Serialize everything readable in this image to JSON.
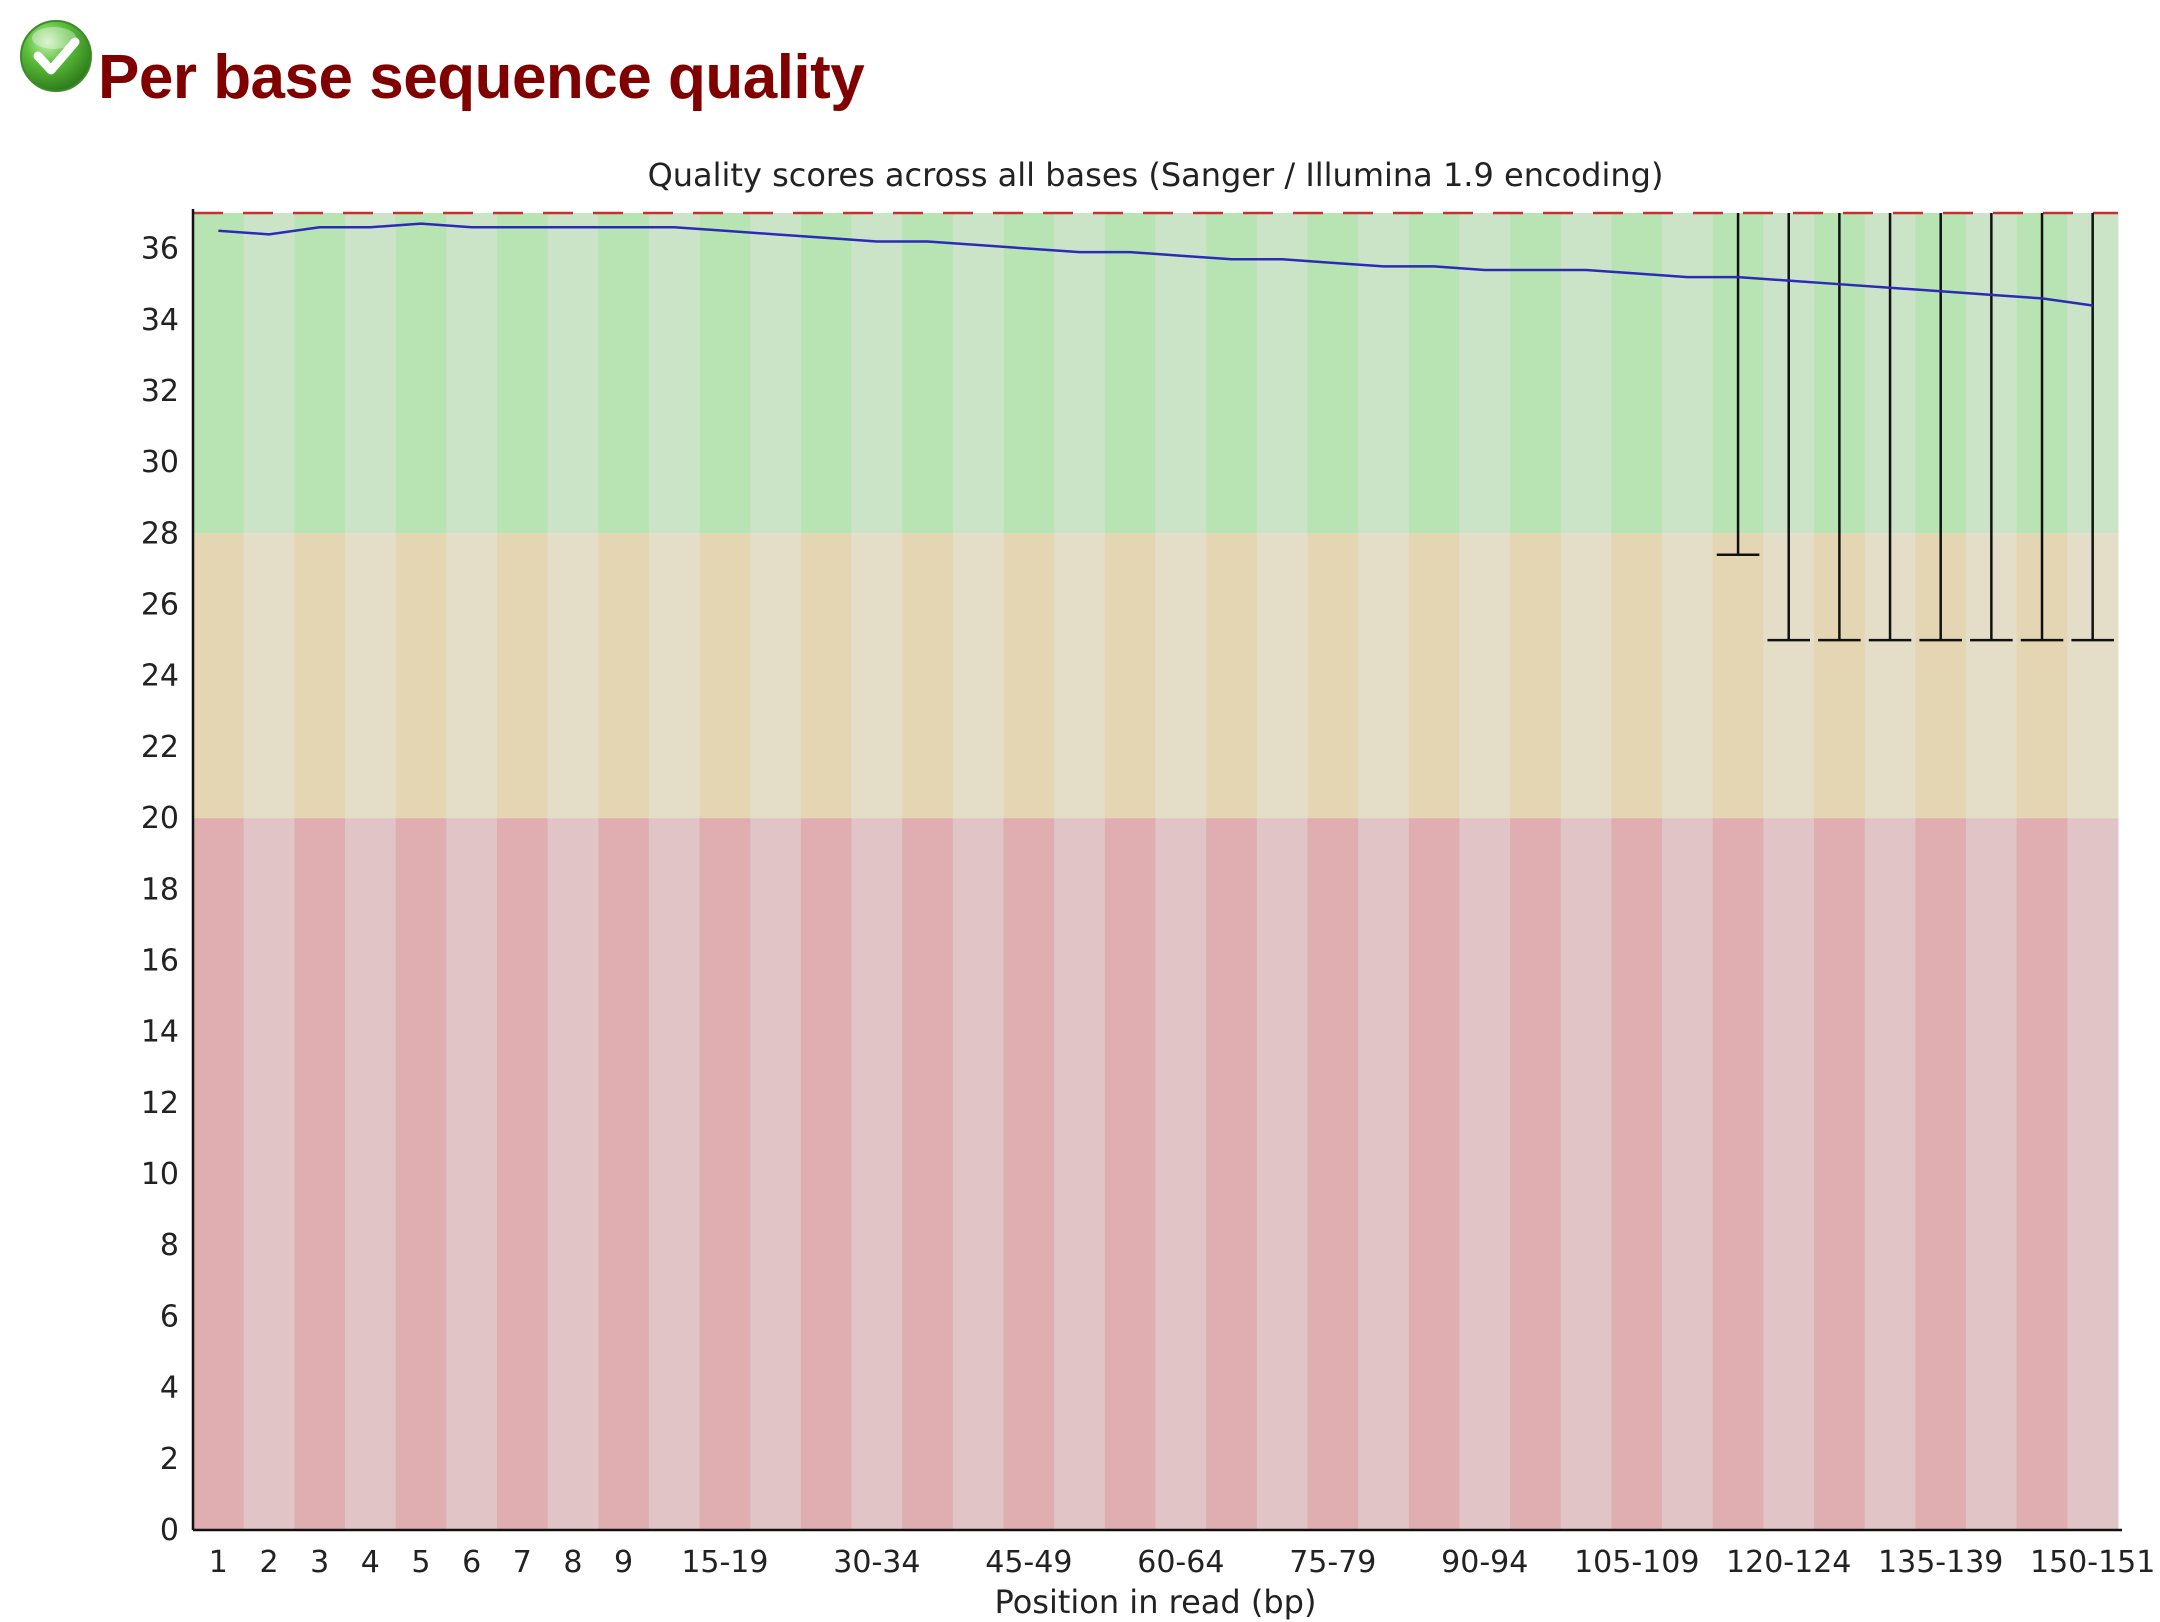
{
  "header": {
    "title": "Per base sequence quality",
    "status_icon": "pass-check-icon",
    "status_color": "#3a9a2a"
  },
  "chart_data": {
    "type": "box",
    "title": "Quality scores across all bases (Sanger / Illumina 1.9 encoding)",
    "xlabel": "Position in read (bp)",
    "ylabel": "",
    "ylim": [
      0,
      37
    ],
    "yticks": [
      "0",
      "2",
      "4",
      "6",
      "8",
      "10",
      "12",
      "14",
      "16",
      "18",
      "20",
      "22",
      "24",
      "26",
      "28",
      "30",
      "32",
      "34",
      "36"
    ],
    "categories": [
      "1",
      "2",
      "3",
      "4",
      "5",
      "6",
      "7",
      "8",
      "9",
      "10-14",
      "15-19",
      "20-24",
      "25-29",
      "30-34",
      "35-39",
      "40-44",
      "45-49",
      "50-54",
      "55-59",
      "60-64",
      "65-69",
      "70-74",
      "75-79",
      "80-84",
      "85-89",
      "90-94",
      "95-99",
      "100-104",
      "105-109",
      "110-114",
      "115-119",
      "120-124",
      "125-129",
      "130-134",
      "135-139",
      "140-144",
      "145-149",
      "150-151"
    ],
    "x_tick_labels": [
      "1",
      "2",
      "3",
      "4",
      "5",
      "6",
      "7",
      "8",
      "9",
      "",
      "15-19",
      "",
      "",
      "30-34",
      "",
      "",
      "45-49",
      "",
      "",
      "60-64",
      "",
      "",
      "75-79",
      "",
      "",
      "90-94",
      "",
      "",
      "105-109",
      "",
      "",
      "120-124",
      "",
      "",
      "135-139",
      "",
      "",
      "150-151"
    ],
    "mean_quality": [
      36.5,
      36.4,
      36.6,
      36.6,
      36.7,
      36.6,
      36.6,
      36.6,
      36.6,
      36.6,
      36.5,
      36.4,
      36.3,
      36.2,
      36.2,
      36.1,
      36.0,
      35.9,
      35.9,
      35.8,
      35.7,
      35.7,
      35.6,
      35.5,
      35.5,
      35.4,
      35.4,
      35.4,
      35.3,
      35.2,
      35.2,
      35.1,
      35.0,
      34.9,
      34.8,
      34.7,
      34.6,
      34.4
    ],
    "whiskers": [
      {
        "category": "115-119",
        "low": 27.4,
        "high": 37
      },
      {
        "category": "120-124",
        "low": 25,
        "high": 37
      },
      {
        "category": "125-129",
        "low": 25,
        "high": 37
      },
      {
        "category": "130-134",
        "low": 25,
        "high": 37
      },
      {
        "category": "135-139",
        "low": 25,
        "high": 37
      },
      {
        "category": "140-144",
        "low": 25,
        "high": 37
      },
      {
        "category": "145-149",
        "low": 25,
        "high": 37
      },
      {
        "category": "150-151",
        "low": 25,
        "high": 37
      }
    ],
    "zones": [
      {
        "name": "good",
        "from": 28,
        "to": 37,
        "color_dark": "#b8e4b4",
        "color_light": "#cbe4c8"
      },
      {
        "name": "reasonable",
        "from": 20,
        "to": 28,
        "color_dark": "#e4d6b2",
        "color_light": "#e4dec8"
      },
      {
        "name": "poor",
        "from": 0,
        "to": 20,
        "color_dark": "#e0aeb0",
        "color_light": "#e0c4c6"
      }
    ],
    "mean_line_color": "#2b2bb5",
    "top_dash_color": "#c83030",
    "grid": false,
    "legend": "none"
  }
}
